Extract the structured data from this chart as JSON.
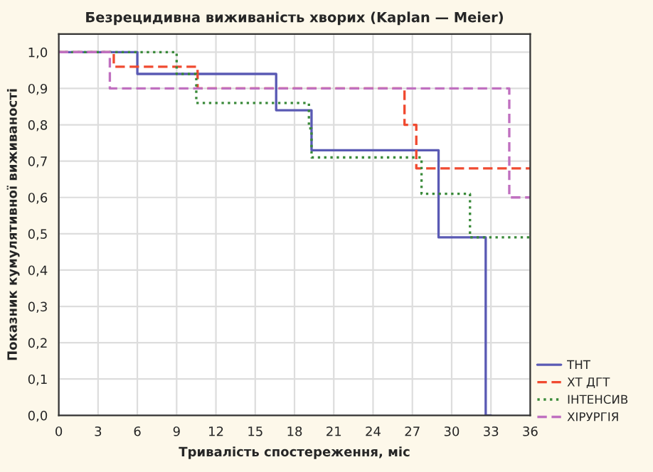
{
  "chart_data": {
    "type": "step",
    "title": "Безрецидивна виживаність хворих (Kaplan — Meier)",
    "xlabel": "Тривалість спостереження, міс",
    "ylabel": "Показник кумулятивної виживаності",
    "series": [
      {
        "name": "ТНТ",
        "color": "#5a5ab4",
        "line_style": "solid",
        "x": [
          0,
          6,
          6,
          16.6,
          16.6,
          19.3,
          19.3,
          29,
          29,
          32.6,
          32.6,
          33
        ],
        "values": [
          1.0,
          1.0,
          0.94,
          0.94,
          0.84,
          0.84,
          0.73,
          0.73,
          0.49,
          0.49,
          0,
          0
        ]
      },
      {
        "name": "ХТ ДГТ",
        "color": "#f04a30",
        "line_style": "dashed",
        "x": [
          0,
          4.2,
          4.2,
          10.6,
          10.6,
          26.4,
          26.4,
          27.3,
          27.3,
          36
        ],
        "values": [
          1.0,
          1.0,
          0.96,
          0.96,
          0.9,
          0.9,
          0.8,
          0.8,
          0.68,
          0.68
        ]
      },
      {
        "name": "ІНТЕНСИВ",
        "color": "#3a8a3a",
        "line_style": "dotted",
        "x": [
          0,
          9,
          9,
          10.5,
          10.5,
          19.1,
          19.1,
          19.3,
          19.3,
          27.7,
          27.7,
          31.4,
          31.4,
          36
        ],
        "values": [
          1.0,
          1.0,
          0.94,
          0.94,
          0.86,
          0.86,
          0.79,
          0.79,
          0.71,
          0.71,
          0.61,
          0.61,
          0.49,
          0.49
        ]
      },
      {
        "name": "ХІРУРГІЯ",
        "color": "#c070c0",
        "line_style": "dashed",
        "x": [
          0,
          3.9,
          3.9,
          34.4,
          34.4,
          36
        ],
        "values": [
          1.0,
          1.0,
          0.9,
          0.9,
          0.6,
          0.6
        ]
      }
    ],
    "xlim": [
      0,
      36
    ],
    "xticks": [
      0,
      3,
      6,
      9,
      12,
      15,
      18,
      21,
      24,
      27,
      30,
      33,
      36
    ],
    "ylim": [
      0,
      1.05
    ],
    "yticks": [
      {
        "value": 0,
        "label": "0,0"
      },
      {
        "value": 0.1,
        "label": "0,1"
      },
      {
        "value": 0.2,
        "label": "0,2"
      },
      {
        "value": 0.3,
        "label": "0,3"
      },
      {
        "value": 0.4,
        "label": "0,4"
      },
      {
        "value": 0.5,
        "label": "0,5"
      },
      {
        "value": 0.6,
        "label": "0,6"
      },
      {
        "value": 0.7,
        "label": "0,7"
      },
      {
        "value": 0.8,
        "label": "0,8"
      },
      {
        "value": 0.9,
        "label": "0,9"
      },
      {
        "value": 1.0,
        "label": "1,0"
      }
    ],
    "grid": true,
    "legend": "bottom right",
    "marker": "none"
  }
}
